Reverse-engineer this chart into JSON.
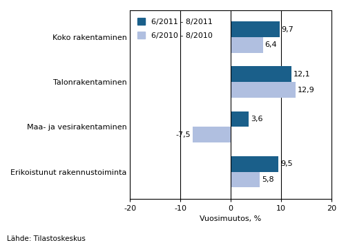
{
  "categories": [
    "Erikoistunut rakennustoiminta",
    "Maa- ja vesirakentaminen",
    "Talonrakentaminen",
    "Koko rakentaminen"
  ],
  "series_2011": [
    9.5,
    3.6,
    12.1,
    9.7
  ],
  "series_2010": [
    5.8,
    -7.5,
    12.9,
    6.4
  ],
  "color_2011": "#1a5f8a",
  "color_2010": "#b0bfe0",
  "xlim": [
    -20,
    20
  ],
  "xticks": [
    -20,
    -10,
    0,
    10,
    20
  ],
  "xlabel": "Vuosimuutos, %",
  "legend_2011": "6/2011 - 8/2011",
  "legend_2010": "6/2010 - 8/2010",
  "bar_height": 0.35,
  "footnote": "Lähde: Tilastoskeskus",
  "label_fontsize": 8,
  "tick_fontsize": 8,
  "category_fontsize": 8,
  "xlabel_fontsize": 8
}
